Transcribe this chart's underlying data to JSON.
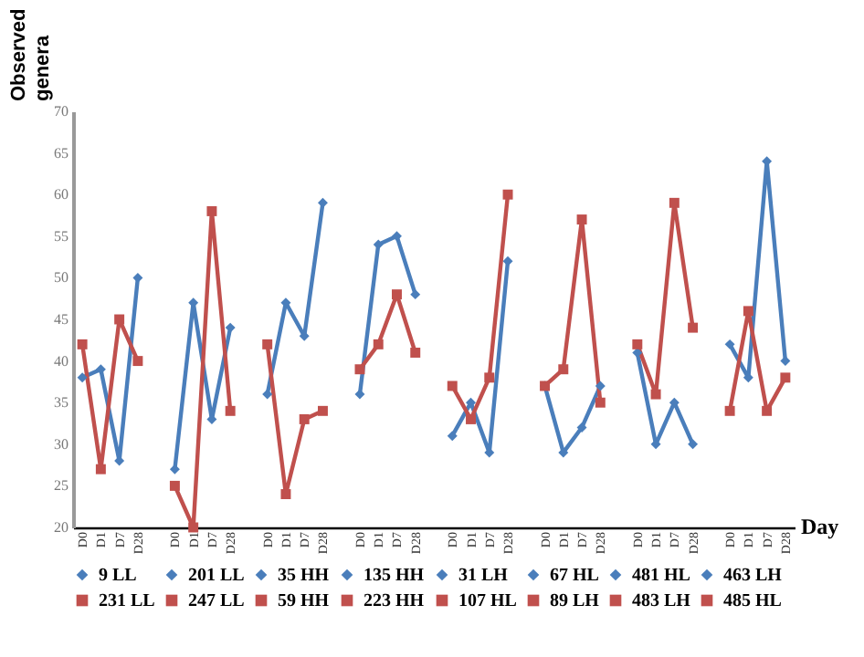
{
  "chart_data": {
    "type": "line",
    "xlabel": "Day",
    "ylabel": "Observed genera",
    "categories": [
      "D0",
      "D1",
      "D7",
      "D28",
      null,
      "D0",
      "D1",
      "D7",
      "D28",
      null,
      "D0",
      "D1",
      "D7",
      "D28",
      null,
      "D0",
      "D1",
      "D7",
      "D28",
      null,
      "D0",
      "D1",
      "D7",
      "D28",
      null,
      "D0",
      "D1",
      "D7",
      "D28",
      null,
      "D0",
      "D1",
      "D7",
      "D28",
      null,
      "D0",
      "D1",
      "D7",
      "D28"
    ],
    "ylim": [
      20,
      70
    ],
    "yticks": [
      20,
      25,
      30,
      35,
      40,
      45,
      50,
      55,
      60,
      65,
      70
    ],
    "grid": false,
    "legend": "bottom",
    "series": [
      {
        "name": "9 LL",
        "color": "#4a7ebb",
        "marker": "diamond",
        "values": [
          38,
          39,
          28,
          50,
          null,
          null,
          null,
          null,
          null,
          null,
          null,
          null,
          null,
          null,
          null,
          null,
          null,
          null,
          null,
          null,
          null,
          null,
          null,
          null,
          null,
          null,
          null,
          null,
          null,
          null,
          null,
          null,
          null,
          null,
          null,
          null,
          null,
          null,
          null
        ]
      },
      {
        "name": "201 LL",
        "color": "#4a7ebb",
        "marker": "diamond",
        "values": [
          null,
          null,
          null,
          null,
          null,
          27,
          47,
          33,
          44,
          null,
          null,
          null,
          null,
          null,
          null,
          null,
          null,
          null,
          null,
          null,
          null,
          null,
          null,
          null,
          null,
          null,
          null,
          null,
          null,
          null,
          null,
          null,
          null,
          null,
          null,
          null,
          null,
          null,
          null
        ]
      },
      {
        "name": "35 HH",
        "color": "#4a7ebb",
        "marker": "diamond",
        "values": [
          null,
          null,
          null,
          null,
          null,
          null,
          null,
          null,
          null,
          null,
          36,
          47,
          43,
          59,
          null,
          null,
          null,
          null,
          null,
          null,
          null,
          null,
          null,
          null,
          null,
          null,
          null,
          null,
          null,
          null,
          null,
          null,
          null,
          null,
          null,
          null,
          null,
          null,
          null
        ]
      },
      {
        "name": "135 HH",
        "color": "#4a7ebb",
        "marker": "diamond",
        "values": [
          null,
          null,
          null,
          null,
          null,
          null,
          null,
          null,
          null,
          null,
          null,
          null,
          null,
          null,
          null,
          36,
          54,
          55,
          48,
          null,
          null,
          null,
          null,
          null,
          null,
          null,
          null,
          null,
          null,
          null,
          null,
          null,
          null,
          null,
          null,
          null,
          null,
          null,
          null
        ]
      },
      {
        "name": "31 LH",
        "color": "#4a7ebb",
        "marker": "diamond",
        "values": [
          null,
          null,
          null,
          null,
          null,
          null,
          null,
          null,
          null,
          null,
          null,
          null,
          null,
          null,
          null,
          null,
          null,
          null,
          null,
          null,
          31,
          35,
          29,
          52,
          null,
          null,
          null,
          null,
          null,
          null,
          null,
          null,
          null,
          null,
          null,
          null,
          null,
          null,
          null
        ]
      },
      {
        "name": "67 HL",
        "color": "#4a7ebb",
        "marker": "diamond",
        "values": [
          null,
          null,
          null,
          null,
          null,
          null,
          null,
          null,
          null,
          null,
          null,
          null,
          null,
          null,
          null,
          null,
          null,
          null,
          null,
          null,
          null,
          null,
          null,
          null,
          null,
          37,
          29,
          32,
          37,
          null,
          null,
          null,
          null,
          null,
          null,
          null,
          null,
          null,
          null
        ]
      },
      {
        "name": "481 HL",
        "color": "#4a7ebb",
        "marker": "diamond",
        "values": [
          null,
          null,
          null,
          null,
          null,
          null,
          null,
          null,
          null,
          null,
          null,
          null,
          null,
          null,
          null,
          null,
          null,
          null,
          null,
          null,
          null,
          null,
          null,
          null,
          null,
          null,
          null,
          null,
          null,
          null,
          41,
          30,
          35,
          30,
          null,
          null,
          null,
          null,
          null
        ]
      },
      {
        "name": "463 LH",
        "color": "#4a7ebb",
        "marker": "diamond",
        "values": [
          null,
          null,
          null,
          null,
          null,
          null,
          null,
          null,
          null,
          null,
          null,
          null,
          null,
          null,
          null,
          null,
          null,
          null,
          null,
          null,
          null,
          null,
          null,
          null,
          null,
          null,
          null,
          null,
          null,
          null,
          null,
          null,
          null,
          null,
          null,
          42,
          38,
          64,
          40
        ]
      },
      {
        "name": "231 LL",
        "color": "#c0504d",
        "marker": "square",
        "values": [
          42,
          27,
          45,
          40,
          null,
          null,
          null,
          null,
          null,
          null,
          null,
          null,
          null,
          null,
          null,
          null,
          null,
          null,
          null,
          null,
          null,
          null,
          null,
          null,
          null,
          null,
          null,
          null,
          null,
          null,
          null,
          null,
          null,
          null,
          null,
          null,
          null,
          null,
          null
        ]
      },
      {
        "name": "247 LL",
        "color": "#c0504d",
        "marker": "square",
        "values": [
          null,
          null,
          null,
          null,
          null,
          25,
          20,
          58,
          34,
          null,
          null,
          null,
          null,
          null,
          null,
          null,
          null,
          null,
          null,
          null,
          null,
          null,
          null,
          null,
          null,
          null,
          null,
          null,
          null,
          null,
          null,
          null,
          null,
          null,
          null,
          null,
          null,
          null,
          null
        ]
      },
      {
        "name": "59 HH",
        "color": "#c0504d",
        "marker": "square",
        "values": [
          null,
          null,
          null,
          null,
          null,
          null,
          null,
          null,
          null,
          null,
          42,
          24,
          33,
          34,
          null,
          null,
          null,
          null,
          null,
          null,
          null,
          null,
          null,
          null,
          null,
          null,
          null,
          null,
          null,
          null,
          null,
          null,
          null,
          null,
          null,
          null,
          null,
          null,
          null
        ]
      },
      {
        "name": "223 HH",
        "color": "#c0504d",
        "marker": "square",
        "values": [
          null,
          null,
          null,
          null,
          null,
          null,
          null,
          null,
          null,
          null,
          null,
          null,
          null,
          null,
          null,
          39,
          42,
          48,
          41,
          null,
          null,
          null,
          null,
          null,
          null,
          null,
          null,
          null,
          null,
          null,
          null,
          null,
          null,
          null,
          null,
          null,
          null,
          null,
          null
        ]
      },
      {
        "name": "107 HL",
        "color": "#c0504d",
        "marker": "square",
        "values": [
          null,
          null,
          null,
          null,
          null,
          null,
          null,
          null,
          null,
          null,
          null,
          null,
          null,
          null,
          null,
          null,
          null,
          null,
          null,
          null,
          37,
          33,
          38,
          60,
          null,
          null,
          null,
          null,
          null,
          null,
          null,
          null,
          null,
          null,
          null,
          null,
          null,
          null,
          null
        ]
      },
      {
        "name": "89 LH",
        "color": "#c0504d",
        "marker": "square",
        "values": [
          null,
          null,
          null,
          null,
          null,
          null,
          null,
          null,
          null,
          null,
          null,
          null,
          null,
          null,
          null,
          null,
          null,
          null,
          null,
          null,
          null,
          null,
          null,
          null,
          null,
          37,
          39,
          57,
          35,
          null,
          null,
          null,
          null,
          null,
          null,
          null,
          null,
          null,
          null
        ]
      },
      {
        "name": "483 LH",
        "color": "#c0504d",
        "marker": "square",
        "values": [
          null,
          null,
          null,
          null,
          null,
          null,
          null,
          null,
          null,
          null,
          null,
          null,
          null,
          null,
          null,
          null,
          null,
          null,
          null,
          null,
          null,
          null,
          null,
          null,
          null,
          null,
          null,
          null,
          null,
          null,
          42,
          36,
          59,
          44,
          null,
          null,
          null,
          null,
          null
        ]
      },
      {
        "name": "485 HL",
        "color": "#c0504d",
        "marker": "square",
        "values": [
          null,
          null,
          null,
          null,
          null,
          null,
          null,
          null,
          null,
          null,
          null,
          null,
          null,
          null,
          null,
          null,
          null,
          null,
          null,
          null,
          null,
          null,
          null,
          null,
          null,
          null,
          null,
          null,
          null,
          null,
          null,
          null,
          null,
          null,
          null,
          34,
          46,
          34,
          38
        ]
      }
    ]
  }
}
